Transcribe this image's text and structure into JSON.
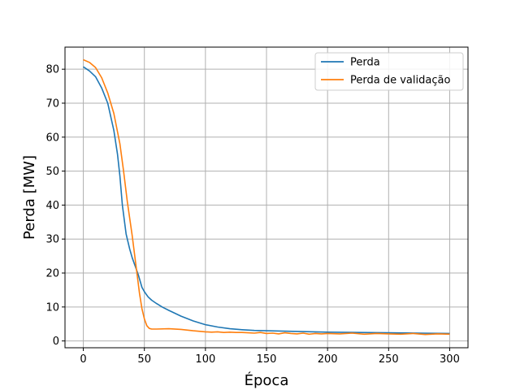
{
  "chart_data": {
    "type": "line",
    "xlabel": "Época",
    "ylabel": "Perda [MW]",
    "xlim": [
      -15,
      315
    ],
    "ylim": [
      -2,
      86.5
    ],
    "xticks": [
      0,
      50,
      100,
      150,
      200,
      250,
      300
    ],
    "yticks": [
      0,
      10,
      20,
      30,
      40,
      50,
      60,
      70,
      80
    ],
    "grid": true,
    "legend_position": "top-right",
    "series": [
      {
        "name": "Perda",
        "color": "#1f77b4",
        "x": [
          0,
          5,
          10,
          15,
          20,
          25,
          28,
          30,
          32,
          35,
          38,
          40,
          45,
          48,
          50,
          53,
          56,
          60,
          65,
          70,
          80,
          90,
          100,
          110,
          120,
          130,
          140,
          150,
          175,
          200,
          225,
          250,
          275,
          300
        ],
        "y": [
          80.7,
          79.5,
          77.8,
          74.5,
          70.0,
          62.0,
          55.0,
          48.5,
          40.0,
          31.5,
          27.0,
          24.5,
          19.5,
          15.8,
          14.5,
          13.0,
          12.0,
          11.0,
          9.9,
          9.0,
          7.3,
          5.9,
          4.8,
          4.1,
          3.6,
          3.3,
          3.1,
          3.0,
          2.8,
          2.6,
          2.5,
          2.4,
          2.3,
          2.2
        ]
      },
      {
        "name": "Perda de validação",
        "color": "#ff7f0e",
        "x": [
          0,
          5,
          10,
          15,
          20,
          25,
          30,
          33,
          36,
          40,
          43,
          46,
          48,
          50,
          52,
          54,
          56,
          60,
          70,
          80,
          90,
          100,
          105,
          110,
          115,
          120,
          125,
          130,
          135,
          140,
          145,
          150,
          155,
          160,
          165,
          170,
          175,
          180,
          185,
          190,
          195,
          200,
          210,
          220,
          230,
          240,
          250,
          260,
          270,
          280,
          290,
          300
        ],
        "y": [
          82.8,
          82.0,
          80.5,
          77.5,
          73.0,
          67.0,
          58.0,
          50.0,
          41.0,
          31.0,
          22.5,
          14.0,
          9.5,
          6.5,
          4.5,
          3.7,
          3.5,
          3.5,
          3.6,
          3.4,
          3.0,
          2.7,
          2.6,
          2.7,
          2.5,
          2.6,
          2.5,
          2.5,
          2.4,
          2.3,
          2.5,
          2.2,
          2.3,
          2.1,
          2.4,
          2.2,
          2.1,
          2.3,
          2.0,
          2.2,
          2.1,
          2.2,
          2.1,
          2.3,
          2.0,
          2.2,
          2.1,
          2.0,
          2.2,
          1.9,
          2.1,
          2.0
        ]
      }
    ]
  }
}
